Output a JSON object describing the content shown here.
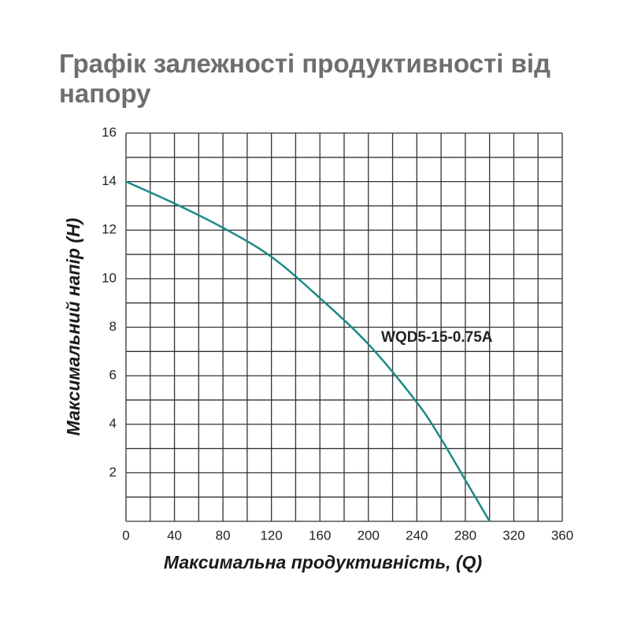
{
  "chart_data": {
    "type": "line",
    "title": "Графік залежності продуктивності від напору",
    "x_label": "Максимальна продуктивність, (Q)",
    "y_label": "Максимальний напір (H)",
    "x": [
      0,
      40,
      80,
      120,
      160,
      200,
      240,
      260,
      280,
      300
    ],
    "series": [
      {
        "name": "WQD5-15-0.75A",
        "color": "#1a8a85",
        "values": [
          14,
          13.1,
          12.1,
          10.9,
          9.2,
          7.3,
          4.9,
          3.4,
          1.7,
          0
        ]
      }
    ],
    "xlim": [
      0,
      360
    ],
    "ylim": [
      0,
      16
    ],
    "xticks": [
      0,
      40,
      80,
      120,
      160,
      200,
      240,
      280,
      320,
      360
    ],
    "yticks": [
      2,
      4,
      6,
      8,
      10,
      12,
      14,
      16
    ],
    "xgrid": [
      0,
      20,
      40,
      60,
      80,
      100,
      120,
      140,
      160,
      180,
      200,
      220,
      240,
      260,
      280,
      300,
      320,
      340,
      360
    ],
    "ygrid": [
      0,
      1,
      2,
      3,
      4,
      5,
      6,
      7,
      8,
      9,
      10,
      11,
      12,
      13,
      14,
      15,
      16
    ],
    "grid_color": "#333333"
  }
}
